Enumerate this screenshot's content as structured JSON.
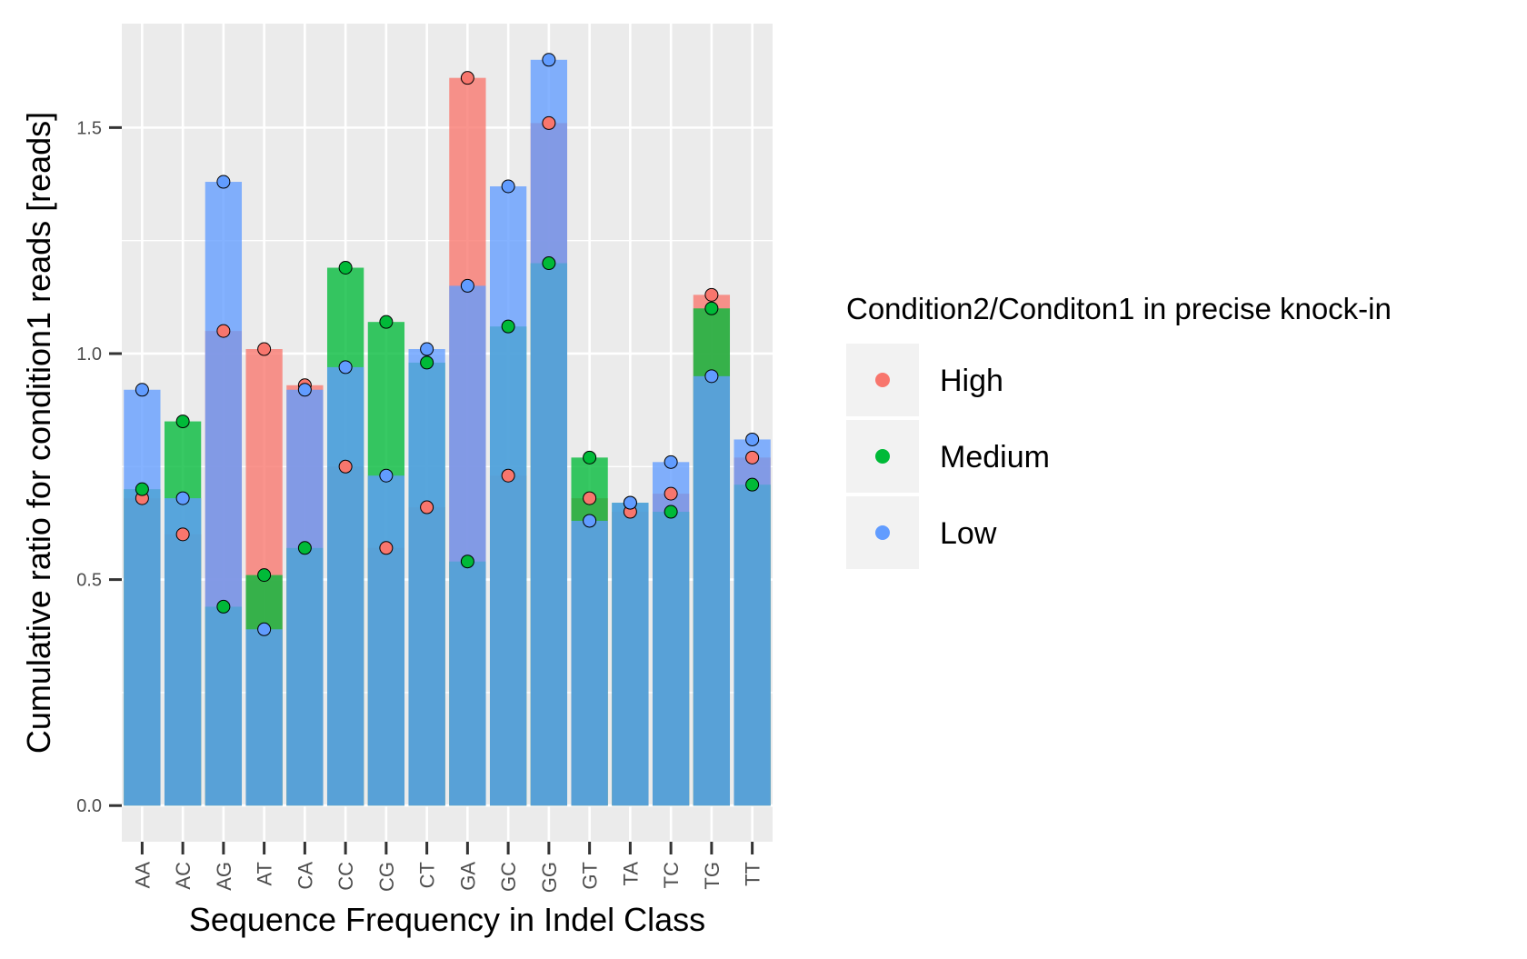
{
  "chart_data": {
    "type": "bar",
    "xlabel": "Sequence Frequency in Indel Class",
    "ylabel": "Cumulative ratio for condition1 reads [reads]",
    "ylim": [
      -0.08,
      1.73
    ],
    "yticks": [
      0.0,
      0.5,
      1.0,
      1.5
    ],
    "ytick_labels": [
      "0.0",
      "0.5",
      "1.0",
      "1.5"
    ],
    "grid": true,
    "legend_position": "right",
    "legend_title": "Condition2/Conditon1 in precise knock-in",
    "categories": [
      "AA",
      "AC",
      "AG",
      "AT",
      "CA",
      "CC",
      "CG",
      "CT",
      "GA",
      "GC",
      "GG",
      "GT",
      "TA",
      "TC",
      "TG",
      "TT"
    ],
    "series": [
      {
        "name": "High",
        "color": "#F8766D",
        "values": [
          0.68,
          0.6,
          1.05,
          1.01,
          0.93,
          0.75,
          0.57,
          0.66,
          1.61,
          0.73,
          1.51,
          0.68,
          0.65,
          0.69,
          1.13,
          0.77
        ]
      },
      {
        "name": "Medium",
        "color": "#00BA38",
        "values": [
          0.7,
          0.85,
          0.44,
          0.51,
          0.57,
          1.19,
          1.07,
          0.98,
          0.54,
          1.06,
          1.2,
          0.77,
          0.67,
          0.65,
          1.1,
          0.71
        ]
      },
      {
        "name": "Low",
        "color": "#619CFF",
        "values": [
          0.92,
          0.68,
          1.38,
          0.39,
          0.92,
          0.97,
          0.73,
          1.01,
          1.15,
          1.37,
          1.65,
          0.63,
          0.67,
          0.76,
          0.95,
          0.81
        ]
      }
    ]
  }
}
